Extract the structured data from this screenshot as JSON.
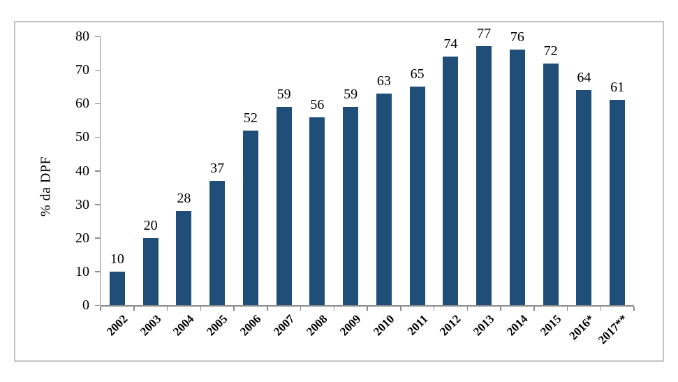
{
  "chart_data": {
    "type": "bar",
    "title": "",
    "categories": [
      "2002",
      "2003",
      "2004",
      "2005",
      "2006",
      "2007",
      "2008",
      "2009",
      "2010",
      "2011",
      "2012",
      "2013",
      "2014",
      "2015",
      "2016*",
      "2017**"
    ],
    "values": [
      10,
      20,
      28,
      37,
      52,
      59,
      56,
      59,
      63,
      65,
      74,
      77,
      76,
      72,
      64,
      61
    ],
    "data_labels": [
      "10",
      "20",
      "28",
      "37",
      "52",
      "59",
      "56",
      "59",
      "63",
      "65",
      "74",
      "77",
      "76",
      "72",
      "64",
      "61"
    ],
    "xlabel": "",
    "ylabel": "% da DPF",
    "ylim": [
      0,
      80
    ],
    "yticks": [
      0,
      10,
      20,
      30,
      40,
      50,
      60,
      70,
      80
    ],
    "grid": false,
    "legend": null,
    "colors": {
      "bar_fill": "#1F4E79",
      "axis": "#8C8C8C",
      "frame_border": "#C4C4C4",
      "text": "#000000"
    }
  }
}
